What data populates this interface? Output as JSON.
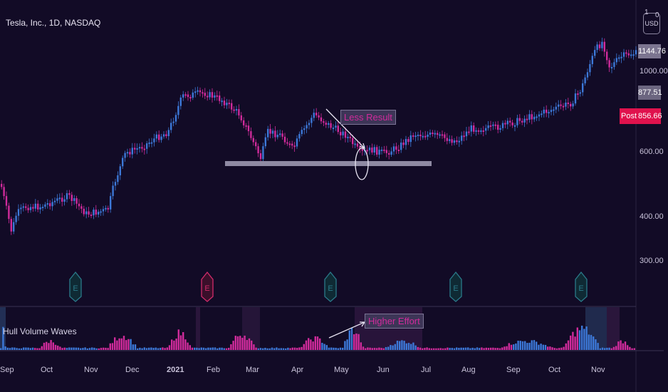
{
  "header": {
    "title": "Tesla, Inc., 1D, NASDAQ"
  },
  "scale_button": {
    "label": "USD",
    "top_digit": "1",
    "side_digit": "0"
  },
  "price_axis": {
    "ticks": [
      "1000.00",
      "600.00",
      "400.00",
      "300.00"
    ]
  },
  "price_tags": {
    "last": "1144.76",
    "prev": "877.51",
    "post_label": "Post",
    "post_value": "856.66"
  },
  "time_axis": {
    "labels": [
      "Sep",
      "Oct",
      "Nov",
      "Dec",
      "2021",
      "Feb",
      "Mar",
      "Apr",
      "May",
      "Jun",
      "Jul",
      "Aug",
      "Sep",
      "Oct",
      "Nov"
    ]
  },
  "annotations": {
    "less_result": "Less Result",
    "higher_effort": "Higher Effort"
  },
  "indicator": {
    "name": "Hull Volume Waves"
  },
  "earnings": {
    "marker": "E"
  },
  "colors": {
    "background": "#120b26",
    "up": "#3c78d8",
    "down": "#d12b9c",
    "post": "#e0124d",
    "support": "#8f8aa3"
  }
}
